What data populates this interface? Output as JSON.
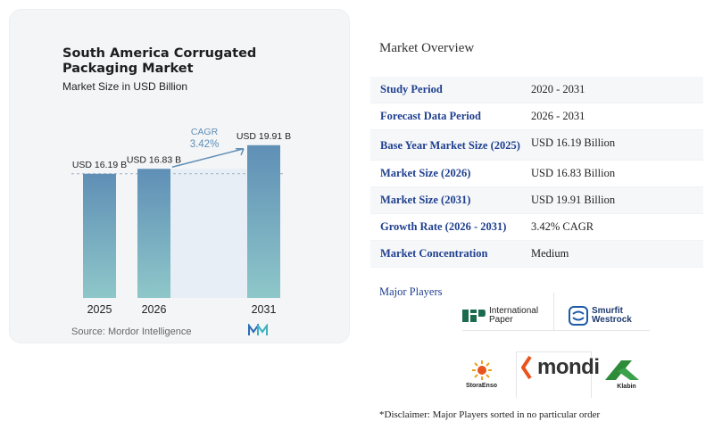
{
  "chart": {
    "title": "South America Corrugated Packaging Market",
    "subtitle": "Market Size in USD Billion",
    "source": "Source: Mordor Intelligence",
    "cagr_label": "CAGR",
    "cagr_value": "3.42%"
  },
  "chart_data": {
    "type": "bar",
    "categories": [
      "2025",
      "2026",
      "2031"
    ],
    "values": [
      16.19,
      16.83,
      19.91
    ],
    "value_labels": [
      "USD 16.19 B",
      "USD 16.83 B",
      "USD 19.91 B"
    ],
    "annotation": "CAGR 3.42%",
    "title": "South America Corrugated Packaging Market",
    "ylabel": "Market Size in USD Billion",
    "colors": {
      "bar_top": "#5f8fb6",
      "bar_bottom": "#8ec7c9",
      "arrow": "#5f8fb6"
    }
  },
  "overview": {
    "title": "Market Overview",
    "rows": [
      {
        "key": "Study Period",
        "value": "2020 - 2031"
      },
      {
        "key": "Forecast Data Period",
        "value": "2026 - 2031"
      },
      {
        "key": "Base Year Market Size (2025)",
        "value": "USD 16.19 Billion"
      },
      {
        "key": "Market Size (2026)",
        "value": "USD 16.83 Billion"
      },
      {
        "key": "Market Size (2031)",
        "value": "USD 19.91 Billion"
      },
      {
        "key": "Growth Rate (2026 - 2031)",
        "value": "3.42% CAGR"
      },
      {
        "key": "Market Concentration",
        "value": "Medium"
      }
    ]
  },
  "players": {
    "title": "Major Players",
    "international_paper": [
      "International",
      "Paper"
    ],
    "smurfit_westrock": [
      "Smurfit",
      "Westrock"
    ],
    "stora_enso": "StoraEnso",
    "mondi": "mondi",
    "klabin": "Klabin"
  },
  "disclaimer": "*Disclaimer: Major Players sorted in no particular order",
  "colors": {
    "accent": "#1f3f8f",
    "card_bg": "#f4f5f7"
  }
}
